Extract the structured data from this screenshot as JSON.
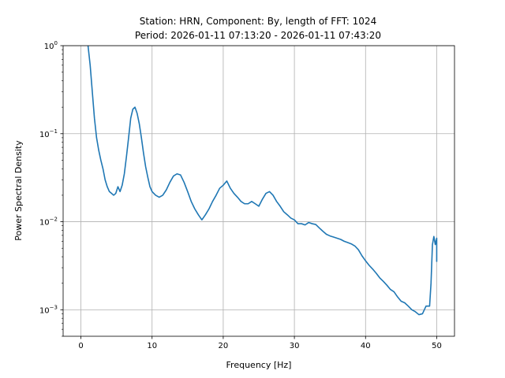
{
  "chart_data": {
    "type": "line",
    "title": "Station: HRN, Component: By, length of FFT: 1024",
    "subtitle": "Period: 2026-01-11 07:13:20 - 2026-01-11 07:43:20",
    "xlabel": "Frequency [Hz]",
    "ylabel": "Power Spectral Density",
    "xlim": [
      -2.5,
      52.5
    ],
    "ylim": [
      0.0005,
      1.0
    ],
    "yscale": "log",
    "grid": true,
    "x_ticks": [
      0,
      10,
      20,
      30,
      40,
      50
    ],
    "x_tick_labels": [
      "0",
      "10",
      "20",
      "30",
      "40",
      "50"
    ],
    "y_ticks": [
      0.001,
      0.01,
      0.1,
      1.0
    ],
    "y_tick_labels": [
      {
        "base": "10",
        "exp": "−3"
      },
      {
        "base": "10",
        "exp": "−2"
      },
      {
        "base": "10",
        "exp": "−1"
      },
      {
        "base": "10",
        "exp": "0"
      }
    ],
    "series": [
      {
        "color": "#1f77b4",
        "x": [
          1.0,
          1.3,
          1.6,
          1.9,
          2.2,
          2.5,
          2.8,
          3.1,
          3.4,
          3.7,
          4.0,
          4.3,
          4.6,
          4.9,
          5.2,
          5.5,
          5.8,
          6.1,
          6.4,
          6.7,
          7.0,
          7.3,
          7.6,
          7.9,
          8.2,
          8.5,
          8.8,
          9.1,
          9.4,
          9.7,
          10.0,
          10.5,
          11.0,
          11.5,
          12.0,
          12.5,
          13.0,
          13.5,
          14.0,
          14.5,
          15.0,
          15.5,
          16.0,
          16.5,
          17.0,
          17.5,
          18.0,
          18.5,
          19.0,
          19.5,
          20.0,
          20.5,
          21.0,
          21.5,
          22.0,
          22.5,
          23.0,
          23.5,
          24.0,
          24.5,
          25.0,
          25.5,
          26.0,
          26.5,
          27.0,
          27.5,
          28.0,
          28.5,
          29.0,
          29.5,
          30.0,
          30.5,
          31.0,
          31.5,
          32.0,
          32.5,
          33.0,
          33.5,
          34.0,
          34.5,
          35.0,
          35.5,
          36.0,
          36.5,
          37.0,
          37.5,
          38.0,
          38.5,
          39.0,
          39.5,
          40.0,
          40.5,
          41.0,
          41.5,
          42.0,
          42.5,
          43.0,
          43.5,
          44.0,
          44.5,
          45.0,
          45.5,
          46.0,
          46.5,
          47.0,
          47.5,
          48.0,
          48.5,
          49.0,
          49.2,
          49.4,
          49.6,
          49.8,
          50.0,
          50.0
        ],
        "y": [
          1.0,
          0.6,
          0.3,
          0.15,
          0.09,
          0.065,
          0.05,
          0.04,
          0.03,
          0.025,
          0.022,
          0.021,
          0.02,
          0.021,
          0.025,
          0.022,
          0.026,
          0.035,
          0.055,
          0.09,
          0.15,
          0.19,
          0.2,
          0.17,
          0.13,
          0.09,
          0.06,
          0.042,
          0.032,
          0.025,
          0.022,
          0.02,
          0.019,
          0.02,
          0.023,
          0.028,
          0.033,
          0.035,
          0.034,
          0.028,
          0.022,
          0.017,
          0.014,
          0.012,
          0.0105,
          0.012,
          0.014,
          0.017,
          0.02,
          0.024,
          0.026,
          0.029,
          0.024,
          0.021,
          0.019,
          0.017,
          0.016,
          0.016,
          0.017,
          0.016,
          0.015,
          0.018,
          0.021,
          0.022,
          0.02,
          0.017,
          0.015,
          0.013,
          0.012,
          0.011,
          0.0105,
          0.0095,
          0.0095,
          0.0092,
          0.0098,
          0.0095,
          0.0093,
          0.0085,
          0.0078,
          0.0072,
          0.0069,
          0.0067,
          0.0065,
          0.0063,
          0.006,
          0.0058,
          0.0056,
          0.0053,
          0.0048,
          0.0041,
          0.0036,
          0.0032,
          0.0029,
          0.0026,
          0.0023,
          0.0021,
          0.0019,
          0.0017,
          0.0016,
          0.0014,
          0.00125,
          0.0012,
          0.0011,
          0.001,
          0.00095,
          0.00088,
          0.0009,
          0.0011,
          0.0011,
          0.002,
          0.0055,
          0.0068,
          0.0055,
          0.0065,
          0.0035
        ]
      }
    ]
  }
}
